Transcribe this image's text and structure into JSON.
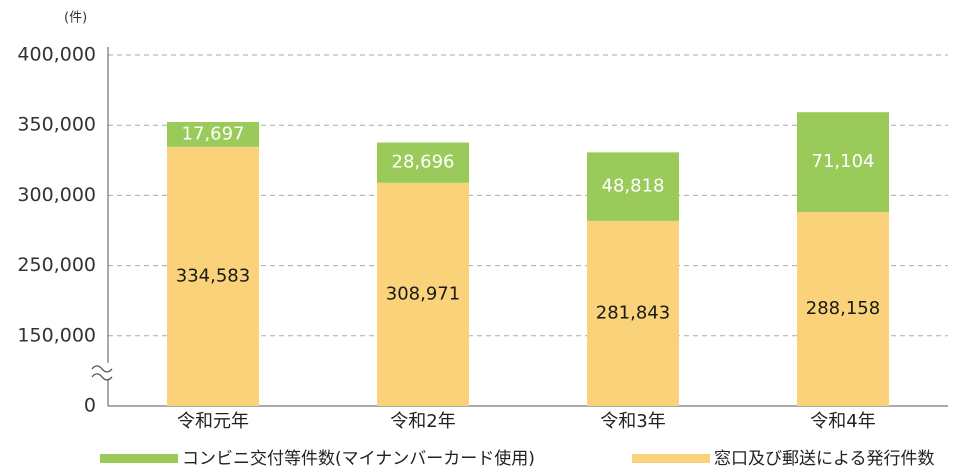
{
  "chart_data": {
    "type": "stacked-bar",
    "unit_label": "(件)",
    "categories": [
      "令和元年",
      "令和2年",
      "令和3年",
      "令和4年"
    ],
    "series": [
      {
        "name": "窓口及び郵送による発行件数",
        "color": "#f9d27a",
        "label_color": "#1a1a1a",
        "values": [
          334583,
          308971,
          281843,
          288158
        ],
        "value_labels": [
          "334,583",
          "308,971",
          "281,843",
          "288,158"
        ]
      },
      {
        "name": "コンビニ交付等件数(マイナンバーカード使用)",
        "color": "#9acb5a",
        "label_color": "#ffffff",
        "values": [
          17697,
          28696,
          48818,
          71104
        ],
        "value_labels": [
          "17,697",
          "28,696",
          "48,818",
          "71,104"
        ]
      }
    ],
    "ylim": [
      0,
      400000
    ],
    "yticks": [
      0,
      {
        "value": 150000,
        "label": "150,000"
      },
      {
        "value": 250000,
        "label": "250,000"
      },
      {
        "value": 300000,
        "label": "300,000"
      },
      {
        "value": 350000,
        "label": "350,000"
      },
      {
        "value": 400000,
        "label": "400,000"
      }
    ],
    "axis_break": true,
    "grid": true
  }
}
